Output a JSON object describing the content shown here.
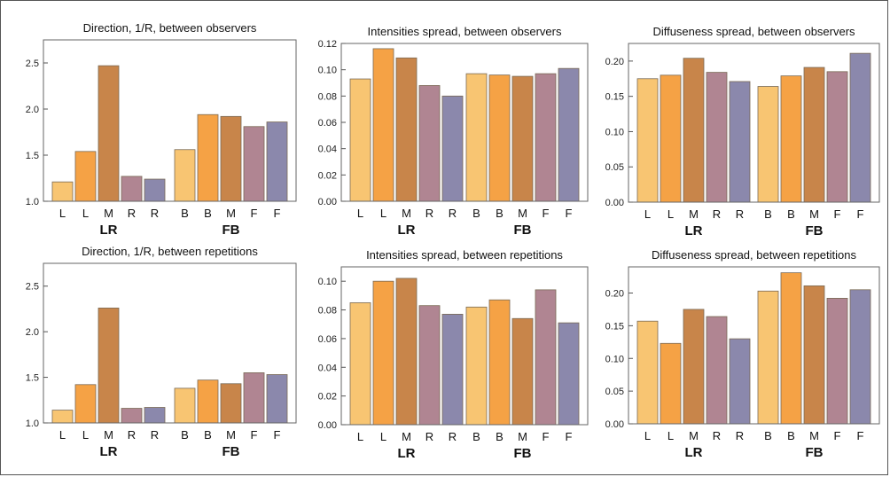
{
  "colors": {
    "L_outer": "#f8c572",
    "L_inner": "#f5a245",
    "M": "#c8854a",
    "R_inner": "#b08592",
    "R_outer": "#8b88ac",
    "B_outer": "#f8c572",
    "B_inner": "#f5a245",
    "F_inner": "#b08592",
    "F_outer": "#8b88ac"
  },
  "chart_data": [
    {
      "type": "bar",
      "title": "Direction, 1/R, between observers",
      "groups": [
        {
          "label": "LR",
          "categories": [
            "L",
            "L",
            "M",
            "R",
            "R"
          ],
          "values": [
            1.21,
            1.54,
            2.47,
            1.27,
            1.24
          ]
        },
        {
          "label": "FB",
          "categories": [
            "B",
            "B",
            "M",
            "F",
            "F"
          ],
          "values": [
            1.56,
            1.94,
            1.92,
            1.81,
            1.86
          ]
        }
      ],
      "ylim": [
        1.0,
        2.75
      ],
      "yticks": [
        "1.0",
        "1.5",
        "2.0",
        "2.5"
      ],
      "ytick_values": [
        1.0,
        1.5,
        2.0,
        2.5
      ]
    },
    {
      "type": "bar",
      "title": "Intensities spread, between observers",
      "groups": [
        {
          "label": "LR",
          "categories": [
            "L",
            "L",
            "M",
            "R",
            "R"
          ],
          "values": [
            0.093,
            0.116,
            0.109,
            0.088,
            0.08
          ]
        },
        {
          "label": "FB",
          "categories": [
            "B",
            "B",
            "M",
            "F",
            "F"
          ],
          "values": [
            0.097,
            0.096,
            0.095,
            0.097,
            0.101
          ]
        }
      ],
      "ylim": [
        0,
        0.12
      ],
      "yticks": [
        "0.00",
        "0.02",
        "0.04",
        "0.06",
        "0.08",
        "0.10",
        "0.12"
      ],
      "ytick_values": [
        0,
        0.02,
        0.04,
        0.06,
        0.08,
        0.1,
        0.12
      ]
    },
    {
      "type": "bar",
      "title": "Diffuseness spread, between observers",
      "groups": [
        {
          "label": "LR",
          "categories": [
            "L",
            "L",
            "M",
            "R",
            "R"
          ],
          "values": [
            0.175,
            0.18,
            0.204,
            0.184,
            0.171
          ]
        },
        {
          "label": "FB",
          "categories": [
            "B",
            "B",
            "M",
            "F",
            "F"
          ],
          "values": [
            0.164,
            0.179,
            0.191,
            0.185,
            0.211
          ]
        }
      ],
      "ylim": [
        0,
        0.225
      ],
      "yticks": [
        "0.00",
        "0.05",
        "0.10",
        "0.15",
        "0.20"
      ],
      "ytick_values": [
        0,
        0.05,
        0.1,
        0.15,
        0.2
      ]
    },
    {
      "type": "bar",
      "title": "Direction, 1/R, between repetitions",
      "groups": [
        {
          "label": "LR",
          "categories": [
            "L",
            "L",
            "M",
            "R",
            "R"
          ],
          "values": [
            1.14,
            1.42,
            2.26,
            1.16,
            1.17
          ]
        },
        {
          "label": "FB",
          "categories": [
            "B",
            "B",
            "M",
            "F",
            "F"
          ],
          "values": [
            1.38,
            1.47,
            1.43,
            1.55,
            1.53
          ]
        }
      ],
      "ylim": [
        1.0,
        2.75
      ],
      "yticks": [
        "1.0",
        "1.5",
        "2.0",
        "2.5"
      ],
      "ytick_values": [
        1.0,
        1.5,
        2.0,
        2.5
      ]
    },
    {
      "type": "bar",
      "title": "Intensities spread, between repetitions",
      "groups": [
        {
          "label": "LR",
          "categories": [
            "L",
            "L",
            "M",
            "R",
            "R"
          ],
          "values": [
            0.085,
            0.1,
            0.102,
            0.083,
            0.077
          ]
        },
        {
          "label": "FB",
          "categories": [
            "B",
            "B",
            "M",
            "F",
            "F"
          ],
          "values": [
            0.082,
            0.087,
            0.074,
            0.094,
            0.071
          ]
        }
      ],
      "ylim": [
        0,
        0.11
      ],
      "yticks": [
        "0.00",
        "0.02",
        "0.04",
        "0.06",
        "0.08",
        "0.10"
      ],
      "ytick_values": [
        0,
        0.02,
        0.04,
        0.06,
        0.08,
        0.1
      ]
    },
    {
      "type": "bar",
      "title": "Diffuseness spread, between repetitions",
      "groups": [
        {
          "label": "LR",
          "categories": [
            "L",
            "L",
            "M",
            "R",
            "R"
          ],
          "values": [
            0.157,
            0.123,
            0.175,
            0.164,
            0.13
          ]
        },
        {
          "label": "FB",
          "categories": [
            "B",
            "B",
            "M",
            "F",
            "F"
          ],
          "values": [
            0.203,
            0.231,
            0.211,
            0.192,
            0.205
          ]
        }
      ],
      "ylim": [
        0,
        0.24
      ],
      "yticks": [
        "0.00",
        "0.05",
        "0.10",
        "0.15",
        "0.20"
      ],
      "ytick_values": [
        0,
        0.05,
        0.1,
        0.15,
        0.2
      ]
    }
  ]
}
